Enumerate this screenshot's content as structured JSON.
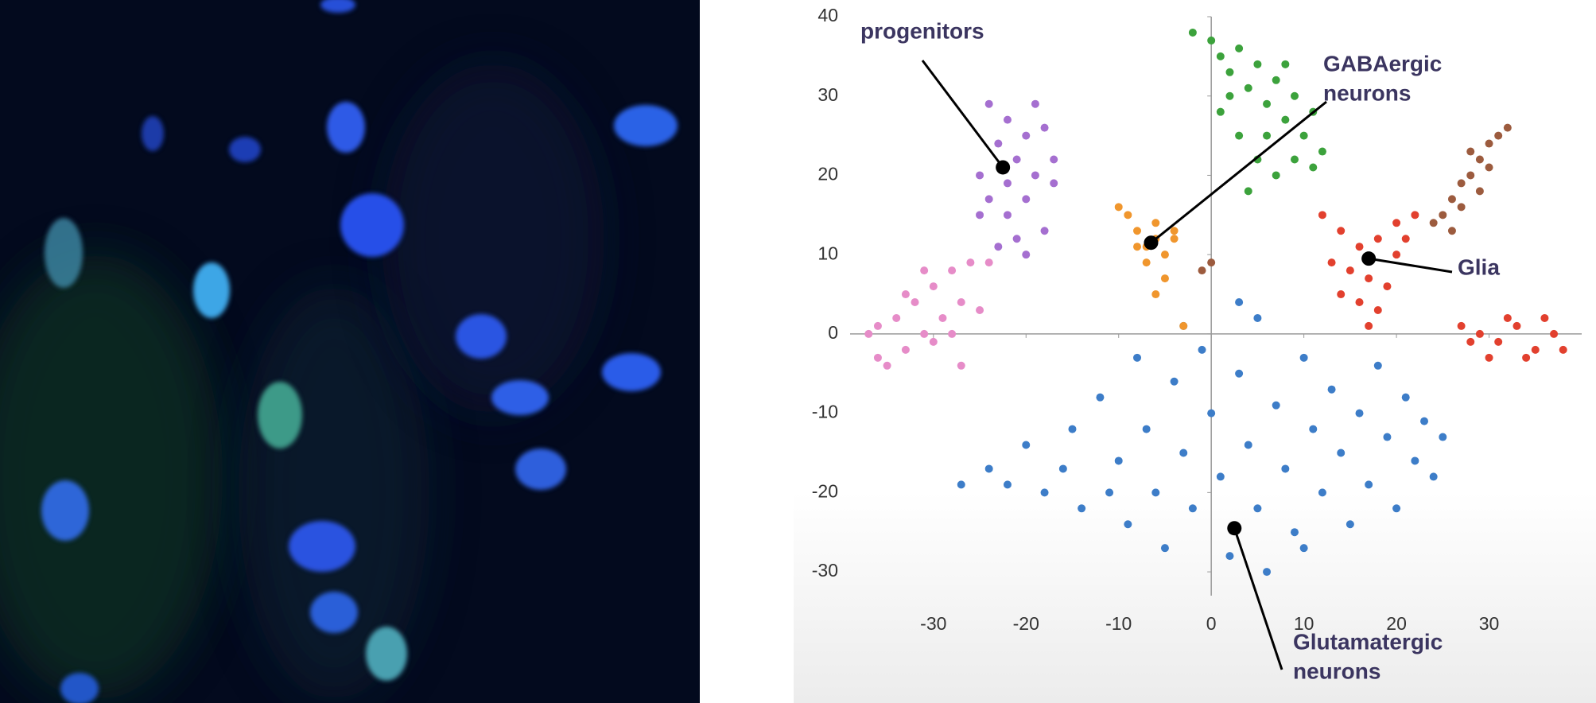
{
  "chart_data": {
    "type": "scatter",
    "xlim": [
      -39,
      40
    ],
    "ylim": [
      -33,
      40
    ],
    "xticks": [
      -30,
      -20,
      -10,
      0,
      10,
      20,
      30
    ],
    "yticks": [
      -30,
      -20,
      -10,
      0,
      10,
      20,
      30,
      40
    ],
    "series": [
      {
        "color": "#3d7dc8",
        "x": [
          -27,
          -24,
          -20,
          -18,
          -15,
          -14,
          -12,
          -10,
          -9,
          -8,
          -7,
          -6,
          -5,
          -4,
          -3,
          -2,
          -1,
          0,
          1,
          2,
          3,
          4,
          5,
          6,
          7,
          8,
          9,
          10,
          11,
          12,
          13,
          14,
          15,
          16,
          17,
          18,
          19,
          20,
          21,
          22,
          23,
          24,
          25,
          -16,
          -11,
          -3,
          3,
          5,
          -22,
          10
        ],
        "y": [
          -19,
          -17,
          -14,
          -20,
          -12,
          -22,
          -8,
          -16,
          -24,
          -3,
          -12,
          -20,
          -27,
          -6,
          -15,
          -22,
          -2,
          -10,
          -18,
          -28,
          -5,
          -14,
          -22,
          -30,
          -9,
          -17,
          -25,
          -3,
          -12,
          -20,
          -7,
          -15,
          -24,
          -10,
          -19,
          -4,
          -13,
          -22,
          -8,
          -16,
          -11,
          -18,
          -13,
          -17,
          -20,
          1,
          4,
          2,
          -19,
          -27
        ]
      },
      {
        "color": "#3ca23c",
        "x": [
          -2,
          0,
          1,
          2,
          3,
          4,
          5,
          6,
          7,
          8,
          9,
          10,
          11,
          12,
          1,
          3,
          5,
          7,
          9,
          11,
          6,
          8,
          4,
          2
        ],
        "y": [
          38,
          37,
          35,
          33,
          36,
          31,
          34,
          29,
          32,
          27,
          30,
          25,
          28,
          23,
          28,
          25,
          22,
          20,
          22,
          21,
          25,
          34,
          18,
          30
        ]
      },
      {
        "color": "#a56fd0",
        "x": [
          -24,
          -22,
          -20,
          -18,
          -17,
          -19,
          -21,
          -23,
          -25,
          -24,
          -22,
          -20,
          -18,
          -21,
          -23,
          -19,
          -17,
          -25,
          -22,
          -20
        ],
        "y": [
          29,
          27,
          25,
          26,
          22,
          20,
          22,
          24,
          20,
          17,
          15,
          17,
          13,
          12,
          11,
          29,
          19,
          15,
          19,
          10
        ]
      },
      {
        "color": "#e68cc8",
        "x": [
          -37,
          -36,
          -34,
          -33,
          -32,
          -31,
          -30,
          -29,
          -28,
          -27,
          -26,
          -35,
          -33,
          -30,
          -28,
          -27,
          -25,
          -31,
          -24,
          -36
        ],
        "y": [
          0,
          -3,
          2,
          -2,
          4,
          0,
          6,
          2,
          8,
          4,
          9,
          -4,
          5,
          -1,
          0,
          -4,
          3,
          8,
          9,
          1
        ]
      },
      {
        "color": "#f0962d",
        "x": [
          -9,
          -8,
          -7,
          -6,
          -5,
          -6,
          -4,
          -7,
          -5,
          -8,
          -6,
          -3,
          -10,
          -4
        ],
        "y": [
          15,
          13,
          11,
          12,
          10,
          14,
          12,
          9,
          7,
          11,
          5,
          1,
          16,
          13
        ]
      },
      {
        "color": "#e2402e",
        "x": [
          12,
          14,
          16,
          18,
          20,
          15,
          17,
          19,
          21,
          13,
          16,
          18,
          20,
          22,
          14,
          17,
          27,
          29,
          31,
          33,
          35,
          37,
          30,
          34,
          36,
          38,
          32,
          28
        ],
        "y": [
          15,
          13,
          11,
          12,
          10,
          8,
          7,
          6,
          12,
          9,
          4,
          3,
          14,
          15,
          5,
          1,
          1,
          0,
          -1,
          1,
          -2,
          0,
          -3,
          -3,
          2,
          -2,
          2,
          -1
        ]
      },
      {
        "color": "#9c5b3e",
        "x": [
          24,
          25,
          26,
          27,
          28,
          29,
          30,
          31,
          32,
          27,
          29,
          28,
          26,
          30,
          -1,
          0
        ],
        "y": [
          14,
          15,
          17,
          19,
          20,
          22,
          24,
          25,
          26,
          16,
          18,
          23,
          13,
          21,
          8,
          9
        ]
      }
    ],
    "annotations": [
      {
        "lines": [
          "progenitors"
        ],
        "x": -22.5,
        "y": 21
      },
      {
        "lines": [
          "GABAergic",
          "neurons"
        ],
        "x": -6.5,
        "y": 11.5
      },
      {
        "lines": [
          "Glia"
        ],
        "x": 17,
        "y": 9.5
      },
      {
        "lines": [
          "Glutamatergic",
          "neurons"
        ],
        "x": 2.5,
        "y": -24.5
      }
    ]
  }
}
